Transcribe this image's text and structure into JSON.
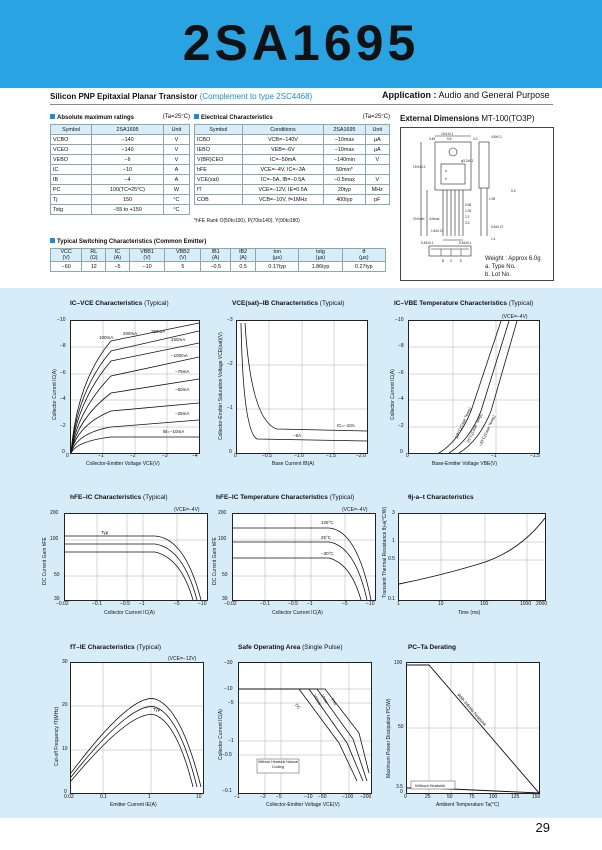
{
  "header": {
    "part_number": "2SA1695"
  },
  "subtitle": {
    "main": "Silicon PNP Epitaxial Planar Transistor",
    "complement": "(Complement to type 2SC4468)"
  },
  "application": {
    "label": "Application :",
    "text": "Audio and General Purpose"
  },
  "abs_max": {
    "title": "Absolute maximum ratings",
    "condition": "(Ta=25°C)",
    "headers": [
      "Symbol",
      "2SA1695",
      "Unit"
    ],
    "rows": [
      [
        "VCBO",
        "−140",
        "V"
      ],
      [
        "VCEO",
        "−140",
        "V"
      ],
      [
        "VEBO",
        "−6",
        "V"
      ],
      [
        "IC",
        "−10",
        "A"
      ],
      [
        "IB",
        "−4",
        "A"
      ],
      [
        "PC",
        "100(TC=25°C)",
        "W"
      ],
      [
        "Tj",
        "150",
        "°C"
      ],
      [
        "Tstg",
        "−55 to +150",
        "°C"
      ]
    ]
  },
  "elec": {
    "title": "Electrical Characteristics",
    "condition": "(Ta=25°C)",
    "headers": [
      "Symbol",
      "Conditions",
      "2SA1695",
      "Unit"
    ],
    "rows": [
      [
        "ICBO",
        "VCB=−140V",
        "−10max",
        "µA"
      ],
      [
        "IEBO",
        "VEB=−6V",
        "−10max",
        "µA"
      ],
      [
        "V(BR)CEO",
        "IC=−50mA",
        "−140min",
        "V"
      ],
      [
        "hFE",
        "VCE=−4V, IC=−3A",
        "50min*",
        ""
      ],
      [
        "VCE(sat)",
        "IC=−5A, IB=−0.5A",
        "−0.5max",
        "V"
      ],
      [
        "fT",
        "VCE=−12V, IE=0.5A",
        "20typ",
        "MHz"
      ],
      [
        "COB",
        "VCB=−10V, f=1MHz",
        "400typ",
        "pF"
      ]
    ],
    "hfe_rank": "*hFE Rank  O(50to100), P(70to140), Y(90to180)"
  },
  "switching": {
    "title": "Typical Switching Characteristics (Common Emitter)",
    "headers": [
      [
        "VCC",
        "(V)"
      ],
      [
        "RL",
        "(Ω)"
      ],
      [
        "IC",
        "(A)"
      ],
      [
        "VBB1",
        "(V)"
      ],
      [
        "VBB2",
        "(V)"
      ],
      [
        "IB1",
        "(A)"
      ],
      [
        "IB2",
        "(A)"
      ],
      [
        "ton",
        "(µs)"
      ],
      [
        "tstg",
        "(µs)"
      ],
      [
        "tf",
        "(µs)"
      ]
    ],
    "values": [
      "−60",
      "12",
      "−5",
      "−10",
      "5",
      "−0.5",
      "0.5",
      "0.17typ",
      "1.86typ",
      "0.27typ"
    ]
  },
  "external": {
    "title": "External Dimensions",
    "package": "MT-100(TO3P)",
    "weight": "Weight : Approx 6.0g",
    "notes": [
      "a. Type No.",
      "b. Lot No."
    ],
    "dims": [
      "15.6±0.1",
      "9.6",
      "4.8±0.2",
      "2.0",
      "3.45",
      "φ3.2±0.1",
      "19.9±0.3",
      "20.0min",
      "4.0max",
      "1.95",
      "1.4",
      "5.45±0.1",
      "5.45±0.1",
      "0.65",
      "1.05",
      "2.2",
      "3.3",
      "1.6±0.27",
      "0.8±0.27",
      "5.3"
    ],
    "pins": [
      "B",
      "C",
      "E"
    ],
    "markings": [
      "a",
      "b"
    ]
  },
  "charts": {
    "c1": {
      "title": "IC–VCE Characteristics",
      "note": "(Typical)",
      "xlabel": "Collector-Emitter Voltage VCE(V)",
      "ylabel": "Collector Current IC(A)",
      "xticks": [
        "0",
        "−1",
        "−2",
        "−3",
        "−4"
      ],
      "yticks": [
        "0",
        "−2",
        "−4",
        "−6",
        "−8",
        "−10"
      ],
      "labels": [
        "100mA",
        "200mA",
        "250mA",
        "150mA",
        "−100mA",
        "−75mA",
        "−50mA",
        "−25mA",
        "IB=−10mA"
      ]
    },
    "c2": {
      "title": "VCE(sat)–IB Characteristics",
      "note": "(Typical)",
      "xlabel": "Base Current IB(A)",
      "ylabel": "Collector-Emitter Saturation Voltage VCE(sat)(V)",
      "xticks": [
        "0",
        "−0.5",
        "−1.0",
        "−1.5",
        "−2.0"
      ],
      "yticks": [
        "0",
        "−1",
        "−2",
        "−3"
      ],
      "labels": [
        "IC=−10A",
        "−5A"
      ]
    },
    "c3": {
      "title": "IC–VBE Temperature  Characteristics",
      "note": "(Typical)",
      "cond": "(VCE=−4V)",
      "xlabel": "Base-Emitter Voltage VBE(V)",
      "ylabel": "Collector Current IC(A)",
      "xticks": [
        "0",
        "−1",
        "−1.5"
      ],
      "yticks": [
        "0",
        "−2",
        "−4",
        "−6",
        "−8",
        "−10"
      ],
      "labels": [
        "125°C(Case Temp)",
        "25°C(Case Temp)",
        "−30°C(Case Temp)"
      ]
    },
    "c4": {
      "title": "hFE–IC Characteristics",
      "note": "(Typical)",
      "cond": "(VCE=−4V)",
      "xlabel": "Collector Current IC(A)",
      "ylabel": "DC Current Gain hFE",
      "xticks": [
        "−0.02",
        "−0.1",
        "−0.5",
        "−1",
        "−5",
        "−10"
      ],
      "yticks": [
        "200",
        "100",
        "50",
        "30"
      ],
      "labels": [
        "Typ"
      ]
    },
    "c5": {
      "title": "hFE–IC Temperature  Characteristics",
      "note": "(Typical)",
      "cond": "(VCE=−4V)",
      "xlabel": "Collector Current IC(A)",
      "ylabel": "DC Current Gain hFE",
      "xticks": [
        "−0.02",
        "−0.1",
        "−0.5",
        "−1",
        "−5",
        "−10"
      ],
      "yticks": [
        "200",
        "100",
        "50",
        "30"
      ],
      "labels": [
        "125°C",
        "25°C",
        "−30°C"
      ]
    },
    "c6": {
      "title": "θj-a–t Characteristics",
      "xlabel": "Time (ms)",
      "ylabel": "Transient Thermal Resistance θj-a(°C/W)",
      "xticks": [
        "1",
        "10",
        "100",
        "1000",
        "2000"
      ],
      "yticks": [
        "3",
        "1",
        "0.5",
        "0.1"
      ]
    },
    "c7": {
      "title": "fT–IE Characteristics",
      "note": "(Typical)",
      "cond": "(VCE=−12V)",
      "xlabel": "Emitter Current IE(A)",
      "ylabel": "Cut-off Frequency fT(MHz)",
      "xticks": [
        "0.02",
        "0.1",
        "1",
        "10"
      ],
      "yticks": [
        "30",
        "20",
        "10",
        "0"
      ],
      "labels": [
        "Typ"
      ]
    },
    "c8": {
      "title": "Safe Operating Area",
      "note": "(Single Pulse)",
      "xlabel": "Collector-Emitter Voltage VCE(V)",
      "ylabel": "Collector Current IC(A)",
      "xticks": [
        "−1",
        "−3",
        "−5",
        "−10",
        "−50",
        "−100",
        "−200"
      ],
      "yticks": [
        "−30",
        "−10",
        "−5",
        "−1",
        "−0.5",
        "−0.1"
      ],
      "labels": [
        "DC",
        "100ms",
        "10ms",
        "1ms",
        "Without Heatsink Natural Cooling"
      ]
    },
    "c9": {
      "title": "PC–Ta Derating",
      "xlabel": "Ambient Temperature Ta(°C)",
      "ylabel": "Maximum Power Dissipation PC(W)",
      "xticks": [
        "0",
        "25",
        "50",
        "75",
        "100",
        "125",
        "150"
      ],
      "yticks": [
        "100",
        "50",
        "3.5",
        "0"
      ],
      "labels": [
        "With Infinite heatsink",
        "Without Heatsink"
      ]
    }
  },
  "page_number": "29"
}
